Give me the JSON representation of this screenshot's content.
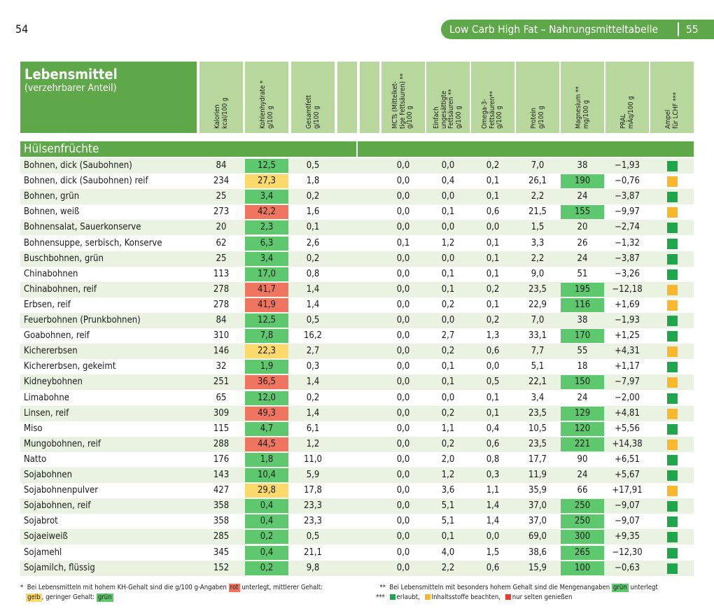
{
  "page": {
    "left_number": "54",
    "right_number": "55",
    "banner_title": "Low Carb High Fat – Nahrungsmitteltabelle"
  },
  "header": {
    "title": "Lebensmittel",
    "subtitle": "(verzehrbarer Anteil)",
    "columns": [
      [
        "Kalorien",
        "kcal/100 g"
      ],
      [
        "Kohlenhydrate *",
        "g/100 g"
      ],
      [
        "Gesamtfett",
        "g/100 g"
      ],
      [],
      [],
      [
        "MCTs (Mittelket-",
        "tige Fettsäuren) **",
        "g/100 g"
      ],
      [
        "Einfach",
        "ungesättigte",
        "Fettsäuren **",
        "g/100 g"
      ],
      [
        "Omega-3-",
        "Fettsäuren**",
        "g/100 g"
      ],
      [
        "Protein",
        "g/100 g"
      ],
      [
        "Magnesium **",
        "mg/100 g"
      ],
      [
        "PRAL",
        "mÄq/100 g"
      ],
      [
        "Ampel",
        "für LCHF ***"
      ]
    ]
  },
  "section": "Hülsenfrüchte",
  "colors": {
    "rot": "#f07561",
    "gelb": "#fbd96a",
    "gruen": "#5ec86e",
    "amp_gruen": "#1ea64b",
    "amp_gelb": "#fbb82a",
    "amp_rot": "#e63b2e",
    "header_green": "#5fa84a",
    "header_light": "#b7d79c",
    "row_alt": "#eaf2e2"
  },
  "rows": [
    {
      "name": "Bohnen, dick (Saubohnen)",
      "kcal": "84",
      "kh": "12,5",
      "kh_level": "gruen",
      "fett": "0,5",
      "mct": "0,0",
      "mufa": "0,0",
      "omega3": "0,2",
      "protein": "7,0",
      "mg": "38",
      "mg_high": false,
      "pral": "−1,93",
      "ampel": "gruen"
    },
    {
      "name": "Bohnen, dick (Saubohnen) reif",
      "kcal": "234",
      "kh": "27,3",
      "kh_level": "gelb",
      "fett": "1,8",
      "mct": "0,0",
      "mufa": "0,4",
      "omega3": "0,1",
      "protein": "26,1",
      "mg": "190",
      "mg_high": true,
      "pral": "−0,76",
      "ampel": "gelb"
    },
    {
      "name": "Bohnen, grün",
      "kcal": "25",
      "kh": "3,4",
      "kh_level": "gruen",
      "fett": "0,2",
      "mct": "0,0",
      "mufa": "0,0",
      "omega3": "0,1",
      "protein": "2,2",
      "mg": "24",
      "mg_high": false,
      "pral": "−3,87",
      "ampel": "gruen"
    },
    {
      "name": "Bohnen, weiß",
      "kcal": "273",
      "kh": "42,2",
      "kh_level": "rot",
      "fett": "1,6",
      "mct": "0,0",
      "mufa": "0,1",
      "omega3": "0,6",
      "protein": "21,5",
      "mg": "155",
      "mg_high": true,
      "pral": "−9,97",
      "ampel": "gelb"
    },
    {
      "name": "Bohnensalat, Sauerkonserve",
      "kcal": "20",
      "kh": "2,3",
      "kh_level": "gruen",
      "fett": "0,1",
      "mct": "0,0",
      "mufa": "0,0",
      "omega3": "0,0",
      "protein": "1,5",
      "mg": "20",
      "mg_high": false,
      "pral": "−2,74",
      "ampel": "gruen"
    },
    {
      "name": "Bohnensuppe, serbisch, Konserve",
      "kcal": "62",
      "kh": "6,3",
      "kh_level": "gruen",
      "fett": "2,6",
      "mct": "0,1",
      "mufa": "1,2",
      "omega3": "0,1",
      "protein": "3,3",
      "mg": "26",
      "mg_high": false,
      "pral": "−1,32",
      "ampel": "gruen"
    },
    {
      "name": "Buschbohnen, grün",
      "kcal": "25",
      "kh": "3,4",
      "kh_level": "gruen",
      "fett": "0,2",
      "mct": "0,0",
      "mufa": "0,0",
      "omega3": "0,1",
      "protein": "2,2",
      "mg": "24",
      "mg_high": false,
      "pral": "−3,87",
      "ampel": "gruen"
    },
    {
      "name": "Chinabohnen",
      "kcal": "113",
      "kh": "17,0",
      "kh_level": "gruen",
      "fett": "0,8",
      "mct": "0,0",
      "mufa": "0,1",
      "omega3": "0,1",
      "protein": "9,0",
      "mg": "51",
      "mg_high": false,
      "pral": "−3,26",
      "ampel": "gruen"
    },
    {
      "name": "Chinabohnen, reif",
      "kcal": "278",
      "kh": "41,7",
      "kh_level": "rot",
      "fett": "1,4",
      "mct": "0,0",
      "mufa": "0,1",
      "omega3": "0,2",
      "protein": "23,5",
      "mg": "195",
      "mg_high": true,
      "pral": "−12,18",
      "ampel": "gelb"
    },
    {
      "name": "Erbsen, reif",
      "kcal": "278",
      "kh": "41,9",
      "kh_level": "rot",
      "fett": "1,4",
      "mct": "0,0",
      "mufa": "0,2",
      "omega3": "0,1",
      "protein": "22,9",
      "mg": "116",
      "mg_high": true,
      "pral": "+1,69",
      "ampel": "gelb"
    },
    {
      "name": "Feuerbohnen (Prunkbohnen)",
      "kcal": "84",
      "kh": "12,5",
      "kh_level": "gruen",
      "fett": "0,5",
      "mct": "0,0",
      "mufa": "0,0",
      "omega3": "0,2",
      "protein": "7,0",
      "mg": "38",
      "mg_high": false,
      "pral": "−1,93",
      "ampel": "gruen"
    },
    {
      "name": "Goabohnen, reif",
      "kcal": "310",
      "kh": "7,8",
      "kh_level": "gruen",
      "fett": "16,2",
      "mct": "0,0",
      "mufa": "2,7",
      "omega3": "1,3",
      "protein": "33,1",
      "mg": "170",
      "mg_high": true,
      "pral": "+1,25",
      "ampel": "gruen"
    },
    {
      "name": "Kichererbsen",
      "kcal": "146",
      "kh": "22,3",
      "kh_level": "gelb",
      "fett": "2,7",
      "mct": "0,0",
      "mufa": "0,2",
      "omega3": "0,6",
      "protein": "7,7",
      "mg": "55",
      "mg_high": false,
      "pral": "+4,31",
      "ampel": "gelb"
    },
    {
      "name": "Kichererbsen, gekeimt",
      "kcal": "32",
      "kh": "1,9",
      "kh_level": "gruen",
      "fett": "0,3",
      "mct": "0,0",
      "mufa": "0,1",
      "omega3": "0,0",
      "protein": "5,1",
      "mg": "18",
      "mg_high": false,
      "pral": "+1,17",
      "ampel": "gruen"
    },
    {
      "name": "Kidneybohnen",
      "kcal": "251",
      "kh": "36,5",
      "kh_level": "rot",
      "fett": "1,4",
      "mct": "0,0",
      "mufa": "0,1",
      "omega3": "0,5",
      "protein": "22,1",
      "mg": "150",
      "mg_high": true,
      "pral": "−7,97",
      "ampel": "gelb"
    },
    {
      "name": "Limabohne",
      "kcal": "65",
      "kh": "12,0",
      "kh_level": "gruen",
      "fett": "0,2",
      "mct": "0,0",
      "mufa": "0,0",
      "omega3": "0,1",
      "protein": "3,4",
      "mg": "24",
      "mg_high": false,
      "pral": "−2,00",
      "ampel": "gruen"
    },
    {
      "name": "Linsen, reif",
      "kcal": "309",
      "kh": "49,3",
      "kh_level": "rot",
      "fett": "1,4",
      "mct": "0,0",
      "mufa": "0,2",
      "omega3": "0,1",
      "protein": "23,5",
      "mg": "129",
      "mg_high": true,
      "pral": "+4,81",
      "ampel": "gelb"
    },
    {
      "name": "Miso",
      "kcal": "115",
      "kh": "4,7",
      "kh_level": "gruen",
      "fett": "6,1",
      "mct": "0,0",
      "mufa": "1,1",
      "omega3": "0,4",
      "protein": "10,5",
      "mg": "120",
      "mg_high": true,
      "pral": "+5,56",
      "ampel": "gruen"
    },
    {
      "name": "Mungobohnen, reif",
      "kcal": "288",
      "kh": "44,5",
      "kh_level": "rot",
      "fett": "1,2",
      "mct": "0,0",
      "mufa": "0,2",
      "omega3": "0,6",
      "protein": "23,5",
      "mg": "221",
      "mg_high": true,
      "pral": "+14,38",
      "ampel": "gelb"
    },
    {
      "name": "Natto",
      "kcal": "176",
      "kh": "1,8",
      "kh_level": "gruen",
      "fett": "11,0",
      "mct": "0,0",
      "mufa": "2,0",
      "omega3": "0,8",
      "protein": "17,7",
      "mg": "90",
      "mg_high": false,
      "pral": "+6,51",
      "ampel": "gruen"
    },
    {
      "name": "Sojabohnen",
      "kcal": "143",
      "kh": "10,4",
      "kh_level": "gruen",
      "fett": "5,9",
      "mct": "0,0",
      "mufa": "1,2",
      "omega3": "0,3",
      "protein": "11,9",
      "mg": "24",
      "mg_high": false,
      "pral": "+5,67",
      "ampel": "gruen"
    },
    {
      "name": "Sojabohnenpulver",
      "kcal": "427",
      "kh": "29,8",
      "kh_level": "gelb",
      "fett": "17,8",
      "mct": "0,0",
      "mufa": "3,6",
      "omega3": "1,1",
      "protein": "35,9",
      "mg": "66",
      "mg_high": false,
      "pral": "+17,91",
      "ampel": "gelb"
    },
    {
      "name": "Sojabohnen, reif",
      "kcal": "358",
      "kh": "0,4",
      "kh_level": "gruen",
      "fett": "23,3",
      "mct": "0,0",
      "mufa": "5,1",
      "omega3": "1,4",
      "protein": "37,0",
      "mg": "250",
      "mg_high": true,
      "pral": "−9,07",
      "ampel": "gruen"
    },
    {
      "name": "Sojabrot",
      "kcal": "358",
      "kh": "0,4",
      "kh_level": "gruen",
      "fett": "23,3",
      "mct": "0,0",
      "mufa": "5,1",
      "omega3": "1,4",
      "protein": "37,0",
      "mg": "250",
      "mg_high": true,
      "pral": "−9,07",
      "ampel": "gruen"
    },
    {
      "name": "Sojaeiweiß",
      "kcal": "285",
      "kh": "0,2",
      "kh_level": "gruen",
      "fett": "0,5",
      "mct": "0,0",
      "mufa": "0,1",
      "omega3": "0,0",
      "protein": "69,0",
      "mg": "300",
      "mg_high": true,
      "pral": "+9,35",
      "ampel": "gruen"
    },
    {
      "name": "Sojamehl",
      "kcal": "345",
      "kh": "0,4",
      "kh_level": "gruen",
      "fett": "21,1",
      "mct": "0,0",
      "mufa": "4,0",
      "omega3": "1,5",
      "protein": "38,6",
      "mg": "265",
      "mg_high": true,
      "pral": "−12,30",
      "ampel": "gruen"
    },
    {
      "name": "Sojamilch, flüssig",
      "kcal": "152",
      "kh": "0,2",
      "kh_level": "gruen",
      "fett": "9,8",
      "mct": "0,0",
      "mufa": "2,2",
      "omega3": "0,6",
      "protein": "15,9",
      "mg": "100",
      "mg_high": true,
      "pral": "−0,63",
      "ampel": "gruen"
    }
  ],
  "footnotes": {
    "f1_marker": "*",
    "f1_text_a": "Bei Lebensmitteln mit hohem KH-Gehalt sind die g/100 g-Angaben",
    "f1_rot": "rot",
    "f1_text_b": "unterlegt, mittlerer Gehalt:",
    "f1_gelb": "gelb",
    "f1_text_c": ", geringer Gehalt:",
    "f1_gruen": "grün",
    "f2_marker": "**",
    "f2_text_a": "Bei Lebensmitteln mit besonders hohem Gehalt sind die Mengenangaben",
    "f2_gruen": "grün",
    "f2_text_b": "unterlegt",
    "f3_marker": "***",
    "f3_erlaubt": "erlaubt,",
    "f3_beachten": "Inhaltsstoffe beachten,",
    "f3_selten": "nur selten genießen"
  }
}
